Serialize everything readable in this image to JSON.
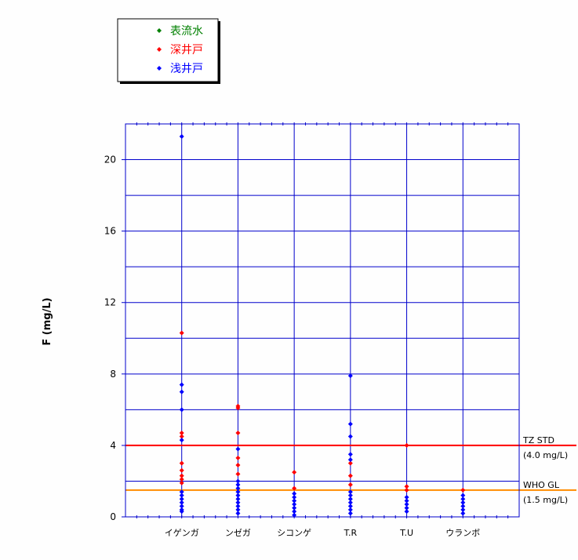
{
  "chart_data": {
    "type": "scatter",
    "ylabel": "F (mg/L)",
    "ylim": [
      0,
      22
    ],
    "yticks": [
      0,
      4,
      8,
      12,
      16,
      20
    ],
    "grid": true,
    "legend_position": "top-left",
    "categories": [
      "イゲンガ",
      "ンゼガ",
      "シコンゲ",
      "T.R",
      "T.U",
      "ウランボ"
    ],
    "series": [
      {
        "name": "表流水",
        "color": "#008000",
        "points": []
      },
      {
        "name": "深井戸",
        "color": "#ff0000",
        "points": [
          {
            "category": "イゲンガ",
            "y": 10.3
          },
          {
            "category": "イゲンガ",
            "y": 4.7
          },
          {
            "category": "イゲンガ",
            "y": 4.5
          },
          {
            "category": "イゲンガ",
            "y": 3.0
          },
          {
            "category": "イゲンガ",
            "y": 2.6
          },
          {
            "category": "イゲンガ",
            "y": 2.3
          },
          {
            "category": "イゲンガ",
            "y": 2.1
          },
          {
            "category": "イゲンガ",
            "y": 1.9
          },
          {
            "category": "ンゼガ",
            "y": 6.2
          },
          {
            "category": "ンゼガ",
            "y": 6.1
          },
          {
            "category": "ンゼガ",
            "y": 4.7
          },
          {
            "category": "ンゼガ",
            "y": 3.3
          },
          {
            "category": "ンゼガ",
            "y": 2.9
          },
          {
            "category": "ンゼガ",
            "y": 2.4
          },
          {
            "category": "シコンゲ",
            "y": 2.5
          },
          {
            "category": "シコンゲ",
            "y": 1.6
          },
          {
            "category": "T.R",
            "y": 3.0
          },
          {
            "category": "T.R",
            "y": 2.3
          },
          {
            "category": "T.R",
            "y": 1.8
          },
          {
            "category": "T.U",
            "y": 4.0
          },
          {
            "category": "T.U",
            "y": 1.7
          },
          {
            "category": "T.U",
            "y": 1.5
          },
          {
            "category": "ウランボ",
            "y": 1.5
          }
        ]
      },
      {
        "name": "浅井戸",
        "color": "#0000ff",
        "points": [
          {
            "category": "イゲンガ",
            "y": 21.3
          },
          {
            "category": "イゲンガ",
            "y": 7.4
          },
          {
            "category": "イゲンガ",
            "y": 7.0
          },
          {
            "category": "イゲンガ",
            "y": 6.0
          },
          {
            "category": "イゲンガ",
            "y": 4.3
          },
          {
            "category": "イゲンガ",
            "y": 1.4
          },
          {
            "category": "イゲンガ",
            "y": 1.2
          },
          {
            "category": "イゲンガ",
            "y": 1.0
          },
          {
            "category": "イゲンガ",
            "y": 0.8
          },
          {
            "category": "イゲンガ",
            "y": 0.6
          },
          {
            "category": "イゲンガ",
            "y": 0.4
          },
          {
            "category": "イゲンガ",
            "y": 0.3
          },
          {
            "category": "ンゼガ",
            "y": 3.8
          },
          {
            "category": "ンゼガ",
            "y": 2.0
          },
          {
            "category": "ンゼガ",
            "y": 1.8
          },
          {
            "category": "ンゼガ",
            "y": 1.6
          },
          {
            "category": "ンゼガ",
            "y": 1.4
          },
          {
            "category": "ンゼガ",
            "y": 1.2
          },
          {
            "category": "ンゼガ",
            "y": 1.0
          },
          {
            "category": "ンゼガ",
            "y": 0.8
          },
          {
            "category": "ンゼガ",
            "y": 0.6
          },
          {
            "category": "ンゼガ",
            "y": 0.4
          },
          {
            "category": "ンゼガ",
            "y": 0.2
          },
          {
            "category": "シコンゲ",
            "y": 1.3
          },
          {
            "category": "シコンゲ",
            "y": 1.1
          },
          {
            "category": "シコンゲ",
            "y": 0.9
          },
          {
            "category": "シコンゲ",
            "y": 0.7
          },
          {
            "category": "シコンゲ",
            "y": 0.5
          },
          {
            "category": "シコンゲ",
            "y": 0.3
          },
          {
            "category": "シコンゲ",
            "y": 0.1
          },
          {
            "category": "T.R",
            "y": 7.9
          },
          {
            "category": "T.R",
            "y": 5.2
          },
          {
            "category": "T.R",
            "y": 4.5
          },
          {
            "category": "T.R",
            "y": 3.5
          },
          {
            "category": "T.R",
            "y": 3.2
          },
          {
            "category": "T.R",
            "y": 1.4
          },
          {
            "category": "T.R",
            "y": 1.2
          },
          {
            "category": "T.R",
            "y": 1.0
          },
          {
            "category": "T.R",
            "y": 0.8
          },
          {
            "category": "T.R",
            "y": 0.6
          },
          {
            "category": "T.R",
            "y": 0.4
          },
          {
            "category": "T.R",
            "y": 0.2
          },
          {
            "category": "T.U",
            "y": 1.1
          },
          {
            "category": "T.U",
            "y": 0.9
          },
          {
            "category": "T.U",
            "y": 0.7
          },
          {
            "category": "T.U",
            "y": 0.5
          },
          {
            "category": "T.U",
            "y": 0.3
          },
          {
            "category": "ウランボ",
            "y": 1.2
          },
          {
            "category": "ウランボ",
            "y": 1.0
          },
          {
            "category": "ウランボ",
            "y": 0.8
          },
          {
            "category": "ウランボ",
            "y": 0.6
          },
          {
            "category": "ウランボ",
            "y": 0.4
          },
          {
            "category": "ウランボ",
            "y": 0.2
          }
        ]
      }
    ],
    "reference_lines": [
      {
        "y": 4.0,
        "color": "#ff0000",
        "label_line1": "TZ STD",
        "label_line2": "(4.0 mg/L)"
      },
      {
        "y": 1.5,
        "color": "#ff8c00",
        "label_line1": "WHO GL",
        "label_line2": "(1.5 mg/L)"
      }
    ]
  }
}
